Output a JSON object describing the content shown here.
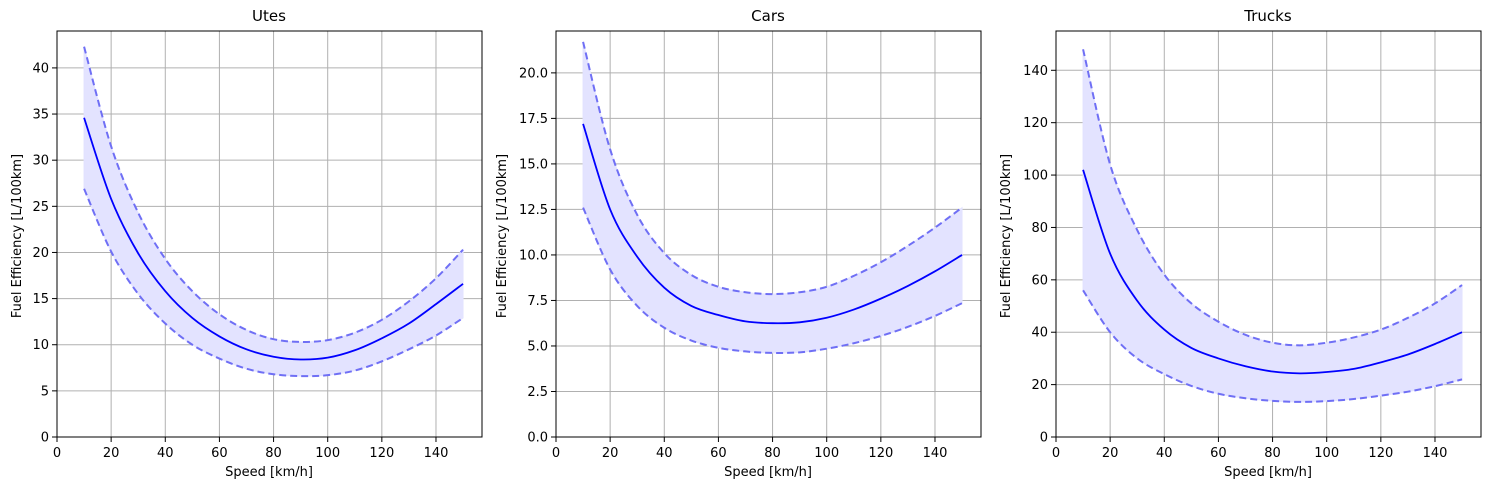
{
  "colors": {
    "line": "#0000ff",
    "band_fill": "#e3e3ff",
    "dashed": "#6f6ff5",
    "grid": "#b0b0b0"
  },
  "chart_data": [
    {
      "type": "line",
      "title": "Utes",
      "xlabel": "Speed [km/h]",
      "ylabel": "Fuel Efficiency [L/100km]",
      "xlim": [
        0,
        157
      ],
      "ylim": [
        0,
        44
      ],
      "xticks": [
        0,
        20,
        40,
        60,
        80,
        100,
        120,
        140
      ],
      "yticks": [
        0,
        5,
        10,
        15,
        20,
        25,
        30,
        35,
        40
      ],
      "ytick_labels": [
        "0",
        "5",
        "10",
        "15",
        "20",
        "25",
        "30",
        "35",
        "40"
      ],
      "grid": true,
      "x": [
        10,
        20,
        30,
        40,
        50,
        60,
        70,
        80,
        90,
        100,
        110,
        120,
        130,
        140,
        150
      ],
      "series": [
        {
          "values": [
            34.6,
            25.8,
            19.9,
            15.8,
            12.9,
            10.9,
            9.5,
            8.7,
            8.4,
            8.6,
            9.4,
            10.7,
            12.3,
            14.4,
            16.6
          ]
        },
        {
          "style": "dashed",
          "values": [
            42.3,
            31.5,
            24.3,
            19.3,
            15.8,
            13.3,
            11.6,
            10.6,
            10.3,
            10.5,
            11.3,
            12.7,
            14.7,
            17.2,
            20.3
          ]
        },
        {
          "style": "dashed",
          "values": [
            26.9,
            20.1,
            15.5,
            12.3,
            10.0,
            8.5,
            7.4,
            6.8,
            6.6,
            6.7,
            7.2,
            8.2,
            9.5,
            11.0,
            12.9
          ]
        }
      ],
      "band": {
        "lower_series": 2,
        "upper_series": 1
      }
    },
    {
      "type": "line",
      "title": "Cars",
      "xlabel": "Speed [km/h]",
      "ylabel": "Fuel Efficiency [L/100km]",
      "xlim": [
        0,
        157
      ],
      "ylim": [
        0,
        22.3
      ],
      "xticks": [
        0,
        20,
        40,
        60,
        80,
        100,
        120,
        140
      ],
      "yticks": [
        0,
        2.5,
        5,
        7.5,
        10,
        12.5,
        15,
        17.5,
        20
      ],
      "ytick_labels": [
        "0.0",
        "2.5",
        "5.0",
        "7.5",
        "10.0",
        "12.5",
        "15.0",
        "17.5",
        "20.0"
      ],
      "grid": true,
      "x": [
        10,
        20,
        30,
        40,
        50,
        60,
        70,
        80,
        90,
        100,
        110,
        120,
        130,
        140,
        150
      ],
      "series": [
        {
          "values": [
            17.2,
            12.5,
            9.9,
            8.2,
            7.2,
            6.7,
            6.35,
            6.25,
            6.3,
            6.55,
            7.0,
            7.6,
            8.3,
            9.1,
            10.0
          ]
        },
        {
          "style": "dashed",
          "values": [
            21.7,
            15.8,
            12.2,
            10.1,
            8.9,
            8.25,
            7.95,
            7.85,
            7.95,
            8.25,
            8.85,
            9.6,
            10.5,
            11.5,
            12.6
          ]
        },
        {
          "style": "dashed",
          "values": [
            12.6,
            9.2,
            7.2,
            6.0,
            5.3,
            4.9,
            4.7,
            4.62,
            4.65,
            4.85,
            5.15,
            5.55,
            6.05,
            6.65,
            7.35
          ]
        }
      ],
      "band": {
        "lower_series": 2,
        "upper_series": 1
      }
    },
    {
      "type": "line",
      "title": "Trucks",
      "xlabel": "Speed [km/h]",
      "ylabel": "Fuel Efficiency [L/100km]",
      "xlim": [
        0,
        157
      ],
      "ylim": [
        0,
        155
      ],
      "xticks": [
        0,
        20,
        40,
        60,
        80,
        100,
        120,
        140
      ],
      "yticks": [
        0,
        20,
        40,
        60,
        80,
        100,
        120,
        140
      ],
      "ytick_labels": [
        "0",
        "20",
        "40",
        "60",
        "80",
        "100",
        "120",
        "140"
      ],
      "grid": true,
      "x": [
        10,
        20,
        30,
        40,
        50,
        60,
        70,
        80,
        90,
        100,
        110,
        120,
        130,
        140,
        150
      ],
      "series": [
        {
          "values": [
            102,
            70,
            52,
            41,
            34,
            30,
            27,
            25,
            24.3,
            24.8,
            26,
            28.5,
            31.5,
            35.5,
            40
          ]
        },
        {
          "style": "dashed",
          "values": [
            148,
            104,
            79,
            62,
            51,
            44,
            39,
            36,
            35,
            36,
            38,
            41,
            45.5,
            51,
            58
          ]
        },
        {
          "style": "dashed",
          "values": [
            56,
            40,
            30,
            24,
            19.5,
            16.5,
            14.8,
            13.8,
            13.4,
            13.7,
            14.5,
            15.8,
            17.3,
            19.4,
            22
          ]
        }
      ],
      "band": {
        "lower_series": 2,
        "upper_series": 1
      }
    }
  ]
}
